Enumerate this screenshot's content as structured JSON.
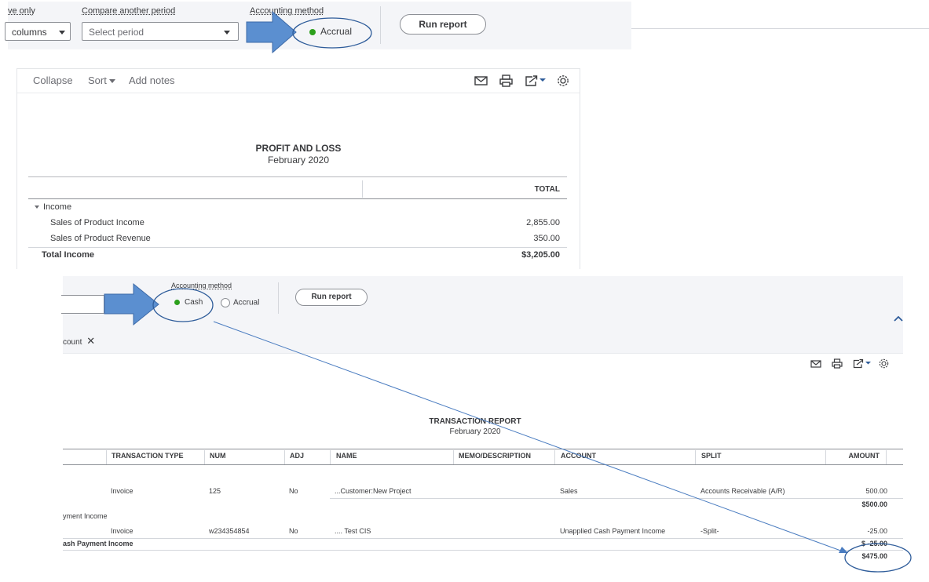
{
  "top_panel": {
    "cut_label": "ve only",
    "columns_value": "columns",
    "compare_label": "Compare another period",
    "compare_placeholder": "Select period",
    "method_label": "Accounting method",
    "method_selected": "Accrual",
    "run_report": "Run report"
  },
  "pl_report": {
    "toolbar": {
      "collapse": "Collapse",
      "sort": "Sort",
      "add_notes": "Add notes"
    },
    "title": "PROFIT AND LOSS",
    "period": "February 2020",
    "total_header": "TOTAL",
    "section": "Income",
    "rows": [
      {
        "label": "Sales of Product Income",
        "value": "2,855.00"
      },
      {
        "label": "Sales of Product Revenue",
        "value": "350.00"
      }
    ],
    "total": {
      "label": "Total Income",
      "value": "$3,205.00"
    }
  },
  "bottom_panel": {
    "method_label": "Accounting method",
    "option_cash": "Cash",
    "option_accrual": "Accrual",
    "run_report": "Run report",
    "filter_chip": "count"
  },
  "tx_report": {
    "title": "TRANSACTION REPORT",
    "period": "February 2020",
    "headers": [
      "TRANSACTION TYPE",
      "NUM",
      "ADJ",
      "NAME",
      "MEMO/DESCRIPTION",
      "ACCOUNT",
      "SPLIT",
      "AMOUNT"
    ],
    "rows": [
      {
        "type": "Invoice",
        "num": "125",
        "adj": "No",
        "name": "...Customer:New Project",
        "memo": "",
        "account": "Sales",
        "split": "Accounts Receivable (A/R)",
        "amount": "500.00"
      }
    ],
    "group1_total": "$500.00",
    "group2_label": "yment Income",
    "rows2": [
      {
        "type": "Invoice",
        "num": "w234354854",
        "adj": "No",
        "name": ".... Test CIS",
        "memo": "",
        "account": "Unapplied Cash Payment Income",
        "split": "-Split-",
        "amount": "-25.00"
      }
    ],
    "group2_total_label": "ash Payment Income",
    "group2_total": "$ -25.00",
    "grand_total": "$475.00"
  },
  "colors": {
    "accent_green": "#2ca01c",
    "arrow_blue": "#5b8fd0",
    "annotation_ink": "#2e5c9a"
  }
}
